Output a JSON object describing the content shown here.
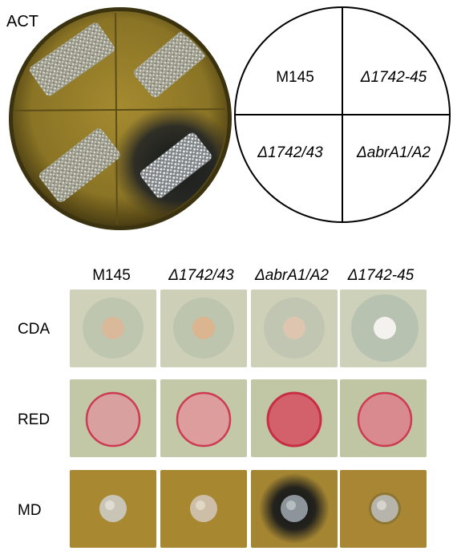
{
  "top_panel": {
    "plate_label": "ACT",
    "schematic": {
      "top_left": "M145",
      "top_right": "Δ1742-45",
      "bottom_left": "Δ1742/43",
      "bottom_right": "ΔabrA1/A2"
    }
  },
  "bottom_panel": {
    "columns": [
      "M145",
      "Δ1742/43",
      "ΔabrA1/A2",
      "Δ1742-45"
    ],
    "rows": [
      "CDA",
      "RED",
      "MD"
    ]
  },
  "colors": {
    "cda_agar": "#cdd0b6",
    "red_agar": "#c2c7a6",
    "md_agar": "#a98832",
    "act_plate": "#8d7a2a",
    "red_colony": "#d2616c"
  }
}
